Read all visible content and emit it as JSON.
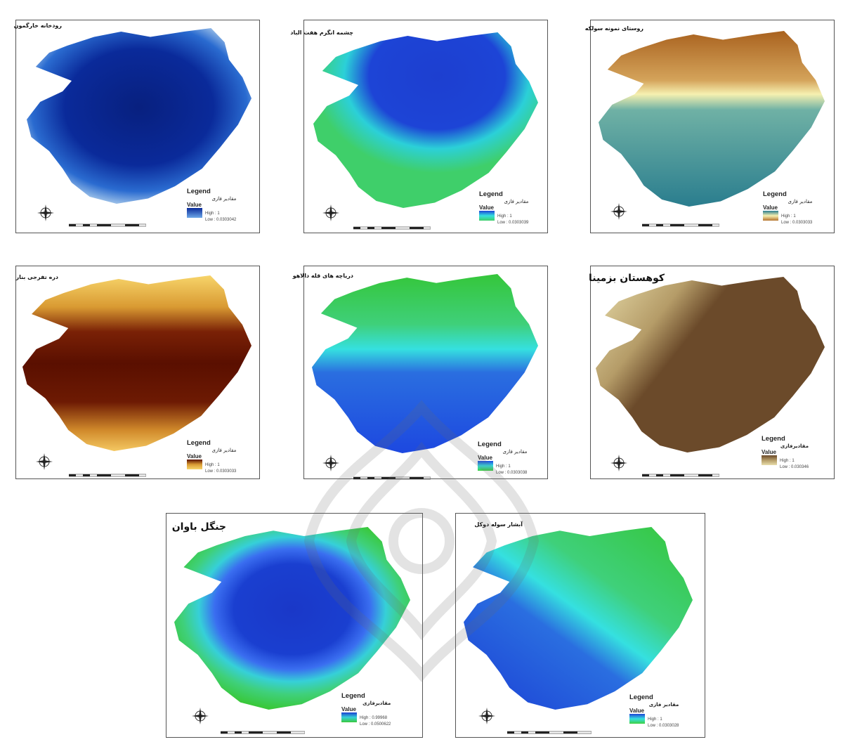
{
  "panels": [
    {
      "title": "رودخانه خارگمون",
      "legend_title": "Legend",
      "legend_sub": "مقادیر فازی",
      "value_label": "Value",
      "high": "High : 1",
      "low": "Low : 0.0303042",
      "colors": {
        "high": "#0a2a9a",
        "low": "#d6ecf5"
      }
    },
    {
      "title": "چشمه انگرم هفت الباد",
      "legend_title": "Legend",
      "legend_sub": "مقادیر فازی",
      "value_label": "Value",
      "high": "High : 1",
      "low": "Low : 0.0303039",
      "colors": {
        "high": "#1d44d6",
        "low": "#3fcf6a"
      }
    },
    {
      "title": "روستای نمونه سولکه",
      "legend_title": "Legend",
      "legend_sub": "مقادیر فازی",
      "value_label": "Value",
      "high": "High : 1",
      "low": "Low : 0.0303033",
      "colors": {
        "high": "#2a7d8e",
        "low": "#b5742e"
      }
    },
    {
      "title": "دره تفرجی بنار",
      "legend_title": "Legend",
      "legend_sub": "مقادیر فازی",
      "value_label": "Value",
      "high": "High : 1",
      "low": "Low : 0.0303033",
      "colors": {
        "high": "#5a0f00",
        "low": "#f7d46a"
      }
    },
    {
      "title": "دریاچه های قله دالاهو",
      "legend_title": "Legend",
      "legend_sub": "مقادیر فازی",
      "value_label": "Value",
      "high": "High : 1",
      "low": "Low : 0.0303038",
      "colors": {
        "high": "#1d48e0",
        "low": "#3fcf3f"
      }
    },
    {
      "title": "کوهستان بزمینا",
      "legend_title": "Legend",
      "legend_sub": "مقادیرفازی",
      "value_label": "Value",
      "high": "High : 1",
      "low": "Low : 0.030346",
      "colors": {
        "high": "#6b4a2a",
        "low": "#e8ddab"
      }
    },
    {
      "title": "جنگل باوان",
      "legend_title": "Legend",
      "legend_sub": "مقادیرفازی",
      "value_label": "Value",
      "high": "High : 0.99968",
      "low": "Low : 0.0500622",
      "colors": {
        "high": "#1a3fd0",
        "low": "#39c83a"
      }
    },
    {
      "title": "آبشار سوله دوکل",
      "legend_title": "Legend",
      "legend_sub": "مقادیر فازی",
      "value_label": "Value",
      "high": "High : 1",
      "low": "Low : 0.0303028",
      "colors": {
        "high": "#1d44d6",
        "low": "#3fcf3f"
      }
    }
  ]
}
